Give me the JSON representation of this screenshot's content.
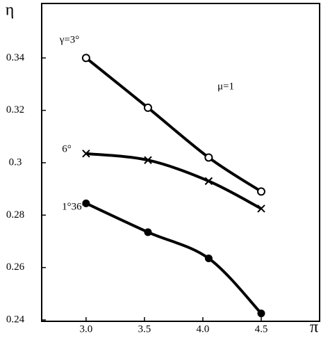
{
  "chart_data": {
    "type": "line",
    "y_label": "η",
    "x_label": "π",
    "annotations": [
      "μ=1"
    ],
    "x": [
      3.0,
      3.53,
      4.05,
      4.5
    ],
    "series": [
      {
        "name": "γ=3°",
        "color": "#000000",
        "marker": "circle",
        "values": [
          0.34,
          0.321,
          0.302,
          0.289
        ]
      },
      {
        "name": "6°",
        "color": "#000000",
        "marker": "cross",
        "values": [
          0.3035,
          0.301,
          0.293,
          0.2825
        ]
      },
      {
        "name": "1°36′",
        "color": "#000000",
        "marker": "dot",
        "values": [
          0.2845,
          0.2735,
          0.2635,
          0.2425
        ]
      }
    ],
    "xlim": [
      2.62,
      5.0
    ],
    "ylim": [
      0.24,
      0.36
    ],
    "xticks": [
      {
        "value": 3,
        "label": "3.0"
      },
      3.5,
      {
        "value": 4,
        "label": "4.0"
      },
      4.5
    ],
    "yticks": [
      0.24,
      0.26,
      0.28,
      0.3,
      0.32,
      0.34
    ]
  }
}
